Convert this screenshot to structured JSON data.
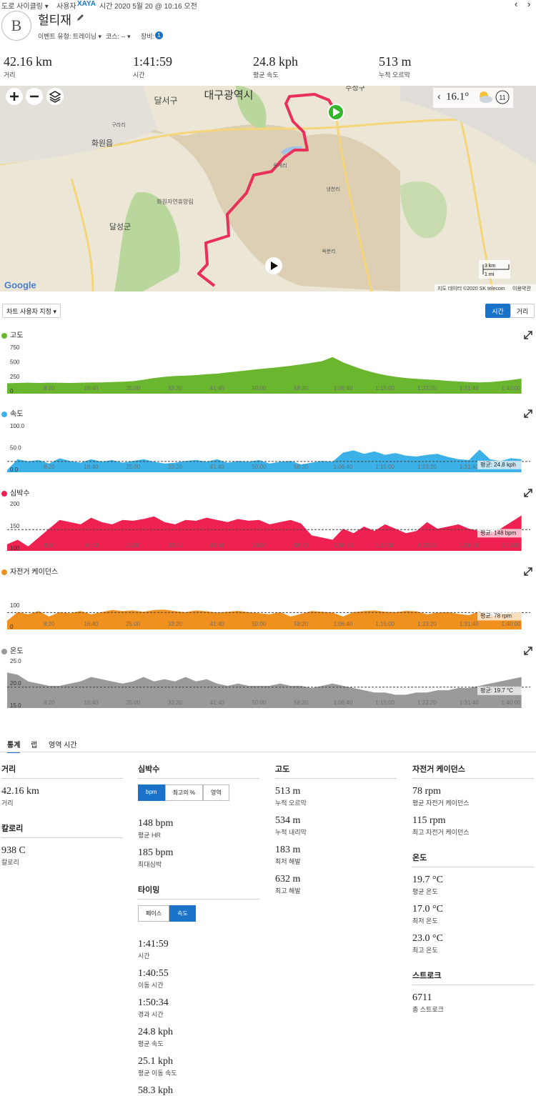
{
  "header": {
    "activity_type": "도로 사이클링 ▾",
    "user_prefix": "사용자",
    "user": "XAYA",
    "time": "시간 2020 5월 20 @ 10:16 오전",
    "avatar": "B",
    "title": "헐티재",
    "event_type": "이벤트 유형: 트레이닝 ▾",
    "course": "코스: -- ▾",
    "gear": "장비:",
    "gear_count": "1"
  },
  "summary": [
    {
      "value": "42.16 km",
      "label": "거리"
    },
    {
      "value": "1:41:59",
      "label": "시간"
    },
    {
      "value": "24.8 kph",
      "label": "평균 속도"
    },
    {
      "value": "513 m",
      "label": "누적 오르막"
    }
  ],
  "map": {
    "labels": [
      "대구광역시",
      "달서구",
      "화원읍",
      "달성군",
      "수성구",
      "화원자연휴양림",
      "용계리",
      "냉천리",
      "구라리",
      "옥분리"
    ],
    "temperature": "16.1°",
    "wind": "11",
    "scale_km": "3 km",
    "scale_mi": "1 mi",
    "logo": "Google",
    "attribution": "지도 데이터 ©2020 SK telecom",
    "terms": "이용약관"
  },
  "chart_controls": {
    "customize": "차트 사용자 지정 ▾",
    "time": "시간",
    "distance": "거리"
  },
  "charts": {
    "xlim": [
      0,
      6230
    ],
    "xticks": [
      {
        "value": 500,
        "label": "8:20"
      },
      {
        "value": 1000,
        "label": "16:40"
      },
      {
        "value": 1500,
        "label": "25:00"
      },
      {
        "value": 2000,
        "label": "33:20"
      },
      {
        "value": 2500,
        "label": "41:40"
      },
      {
        "value": 3000,
        "label": "50:00"
      },
      {
        "value": 3500,
        "label": "58:20"
      },
      {
        "value": 4000,
        "label": "1:06:40"
      },
      {
        "value": 4500,
        "label": "1:15:00"
      },
      {
        "value": 5000,
        "label": "1:23:20"
      },
      {
        "value": 5500,
        "label": "1:31:40"
      },
      {
        "value": 6000,
        "label": "1:40:00"
      }
    ],
    "x": [
      0,
      125,
      250,
      375,
      500,
      625,
      750,
      875,
      1000,
      1125,
      1250,
      1375,
      1500,
      1625,
      1750,
      1875,
      2000,
      2125,
      2250,
      2375,
      2500,
      2625,
      2750,
      2875,
      3000,
      3125,
      3250,
      3375,
      3500,
      3625,
      3750,
      3875,
      4000,
      4125,
      4250,
      4375,
      4500,
      4625,
      4750,
      4875,
      5000,
      5125,
      5250,
      5375,
      5500,
      5625,
      5750,
      5875,
      6000,
      6125
    ],
    "list": [
      {
        "type": "area",
        "title": "고도",
        "color": "#6ab72f",
        "ylim": [
          0,
          800
        ],
        "yticks": [
          0,
          250,
          500,
          750
        ],
        "values": [
          180,
          185,
          190,
          185,
          190,
          188,
          185,
          190,
          192,
          195,
          200,
          205,
          215,
          240,
          270,
          290,
          305,
          310,
          320,
          335,
          345,
          365,
          385,
          405,
          425,
          440,
          460,
          480,
          505,
          530,
          560,
          630,
          540,
          470,
          410,
          360,
          320,
          290,
          270,
          255,
          245,
          235,
          220,
          210,
          200,
          195,
          200,
          215,
          235,
          260
        ]
      },
      {
        "type": "area",
        "title": "속도",
        "color": "#3bb1e8",
        "ylim": [
          0,
          108
        ],
        "yticks": [
          {
            "value": 0,
            "label": "0.0"
          },
          {
            "value": 50,
            "label": "50.0"
          },
          {
            "value": 100,
            "label": "100.0"
          }
        ],
        "avg": 24.8,
        "avg_label": "평균: 24.8 kph",
        "values": [
          5,
          30,
          25,
          28,
          20,
          32,
          26,
          22,
          30,
          24,
          28,
          22,
          26,
          30,
          24,
          20,
          22,
          26,
          28,
          24,
          30,
          22,
          26,
          24,
          28,
          20,
          24,
          26,
          18,
          22,
          26,
          24,
          45,
          50,
          42,
          48,
          40,
          44,
          38,
          36,
          40,
          42,
          35,
          30,
          28,
          52,
          30,
          26,
          32,
          30
        ]
      },
      {
        "type": "area",
        "title": "심박수",
        "color": "#ee2150",
        "ylim": [
          100,
          205
        ],
        "yticks": [
          100,
          150,
          200
        ],
        "avg": 148,
        "avg_label": "평균: 148 bpm",
        "values": [
          115,
          125,
          110,
          130,
          150,
          170,
          165,
          160,
          175,
          165,
          160,
          170,
          168,
          172,
          178,
          165,
          160,
          170,
          168,
          175,
          170,
          165,
          172,
          168,
          170,
          160,
          165,
          170,
          162,
          135,
          130,
          125,
          150,
          140,
          155,
          145,
          160,
          150,
          140,
          145,
          165,
          150,
          155,
          160,
          150,
          145,
          140,
          150,
          165,
          180
        ]
      },
      {
        "type": "area",
        "title": "자전거 케이던스",
        "color": "#f0901e",
        "ylim": [
          0,
          215
        ],
        "yticks": [
          0,
          100
        ],
        "avg": 78,
        "avg_label": "평균: 78 rpm",
        "values": [
          40,
          80,
          70,
          85,
          60,
          80,
          75,
          85,
          70,
          80,
          90,
          85,
          88,
          82,
          90,
          92,
          85,
          80,
          88,
          84,
          78,
          82,
          86,
          80,
          75,
          70,
          80,
          60,
          72,
          85,
          82,
          78,
          60,
          80,
          85,
          88,
          82,
          80,
          86,
          84,
          70,
          78,
          80,
          72,
          66,
          84,
          60,
          70,
          75,
          80
        ]
      },
      {
        "type": "area",
        "title": "온도",
        "color": "#9a9a9a",
        "ylim": [
          15,
          25.3
        ],
        "yticks": [
          {
            "value": 15,
            "label": "15.0"
          },
          {
            "value": 20,
            "label": "20.0"
          },
          {
            "value": 25,
            "label": "25.0"
          }
        ],
        "avg": 19.7,
        "avg_label": "평균: 19.7 °C",
        "values": [
          23,
          22.5,
          21,
          20.5,
          20,
          20,
          20.5,
          21,
          22,
          21.5,
          21,
          20.5,
          21,
          22,
          21,
          21.5,
          21,
          22,
          21,
          21.5,
          20.5,
          20,
          20.5,
          20,
          20,
          20,
          20.5,
          20,
          20,
          19.5,
          20,
          20.5,
          20,
          19.5,
          19,
          18.5,
          18.5,
          18,
          18,
          18.5,
          18.5,
          19,
          19,
          19.5,
          19.5,
          20,
          20.5,
          21,
          21.5,
          22
        ]
      }
    ]
  },
  "stats": {
    "tabs": [
      "통계",
      "랩",
      "영역 시간"
    ],
    "columns": [
      [
        {
          "title": "거리",
          "items": [
            {
              "value": "42.16 km",
              "label": "거리"
            }
          ]
        },
        {
          "title": "칼로리",
          "items": [
            {
              "value": "938 C",
              "label": "칼로리"
            }
          ]
        }
      ],
      [
        {
          "title": "심박수",
          "toggle": [
            "bpm",
            "최고의 %",
            "영역"
          ],
          "active": 0,
          "items": [
            {
              "value": "148 bpm",
              "label": "평균 HR"
            },
            {
              "value": "185 bpm",
              "label": "최대심박"
            }
          ]
        },
        {
          "title": "타이밍",
          "toggle": [
            "페이스",
            "속도"
          ],
          "active": 1,
          "items": [
            {
              "value": "1:41:59",
              "label": "시간"
            },
            {
              "value": "1:40:55",
              "label": "이동 시간"
            },
            {
              "value": "1:50:34",
              "label": "경과 시간"
            },
            {
              "value": "24.8 kph",
              "label": "평균 속도"
            },
            {
              "value": "25.1 kph",
              "label": "평균 이동 속도"
            },
            {
              "value": "58.3 kph",
              "label": "최고 속력"
            }
          ]
        }
      ],
      [
        {
          "title": "고도",
          "items": [
            {
              "value": "513 m",
              "label": "누적 오르막"
            },
            {
              "value": "534 m",
              "label": "누적 내리막"
            },
            {
              "value": "183 m",
              "label": "최저 해발"
            },
            {
              "value": "632 m",
              "label": "최고 해발"
            }
          ]
        }
      ],
      [
        {
          "title": "자전거 케이던스",
          "items": [
            {
              "value": "78 rpm",
              "label": "평균 자전거 케이던스"
            },
            {
              "value": "115 rpm",
              "label": "최고 자전거 케이던스"
            }
          ]
        },
        {
          "title": "온도",
          "items": [
            {
              "value": "19.7 °C",
              "label": "평균 온도"
            },
            {
              "value": "17.0 °C",
              "label": "최저 온도"
            },
            {
              "value": "23.0 °C",
              "label": "최고 온도"
            }
          ]
        },
        {
          "title": "스트로크",
          "items": [
            {
              "value": "6711",
              "label": "총 스트로크"
            }
          ]
        }
      ]
    ]
  }
}
